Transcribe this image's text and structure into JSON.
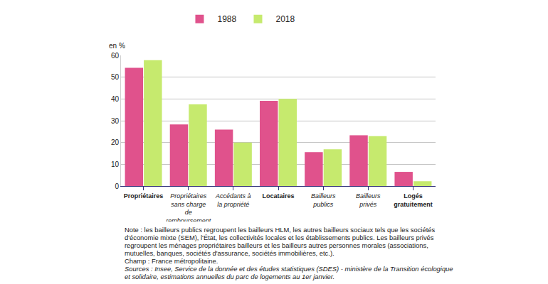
{
  "chart_data": {
    "type": "bar",
    "ylabel": "en %",
    "categories": [
      "Propriétaires",
      "Propriétaires sans charge de remboursement",
      "Accédants à la propriété",
      "Locataires",
      "Bailleurs publics",
      "Bailleurs privés",
      "Logés gratuitement"
    ],
    "series": [
      {
        "name": "1988",
        "color": "#e0528c",
        "values": [
          54.3,
          28.3,
          25.9,
          39.1,
          15.6,
          23.3,
          6.5
        ]
      },
      {
        "name": "2018",
        "color": "#c6ea6e",
        "values": [
          57.8,
          37.5,
          20.0,
          40.0,
          16.9,
          22.9,
          2.2
        ]
      }
    ],
    "ylim": [
      0,
      60
    ],
    "yticks": [
      0,
      10,
      20,
      30,
      40,
      50,
      60
    ],
    "grid": true,
    "legend": "top",
    "annotations": [
      "Note : les bailleurs publics regroupent les bailleurs HLM, les autres bailleurs sociaux tels que les sociétés d'économie mixte (SEM), l'État, les collectivités locales et les établissements publics. Les bailleurs privés regroupent les ménages propriétaires bailleurs et les bailleurs autres personnes morales (associations, mutuelles, banques, sociétés d'assurance, sociétés immobilières, etc.).",
      "Champ : France métropolitaine.",
      "Sources : Insee, Service de la donnée et des études statistiques (SDES) - ministère de la Transition écologique et solidaire, estimations annuelles du parc de logements au 1er janvier."
    ]
  }
}
